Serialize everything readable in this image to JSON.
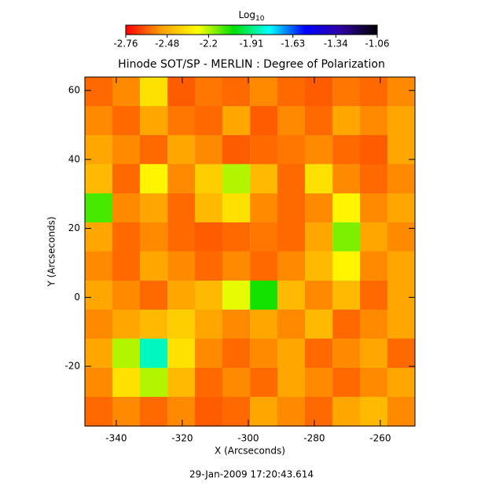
{
  "chart_data": {
    "type": "heatmap",
    "title": "Hinode SOT/SP - MERLIN : Degree of Polarization",
    "x_label": "X (Arcseconds)",
    "y_label": "Y (Arcseconds)",
    "colorbar_label": "Log",
    "colorbar_label_sub": "10",
    "footer": "29-Jan-2009 17:20:43.614",
    "xlim": [
      -349.5,
      -249.5
    ],
    "ylim": [
      -37.3,
      63.9
    ],
    "xticks": [
      -340,
      -320,
      -300,
      -280,
      -260
    ],
    "yticks": [
      -20,
      0,
      20,
      40,
      60
    ],
    "clim": [
      -2.76,
      -1.06
    ],
    "cticks": [
      -2.76,
      -2.48,
      -2.2,
      -1.91,
      -1.63,
      -1.34,
      -1.06
    ],
    "colormap": [
      "#ff0000",
      "#ffa000",
      "#ffff00",
      "#00e000",
      "#00ffff",
      "#0000ff",
      "#3000a0",
      "#000000"
    ],
    "x": [
      -345.3,
      -337.0,
      -328.7,
      -320.3,
      -312.0,
      -303.7,
      -295.3,
      -287.0,
      -278.7,
      -270.3,
      -262.0,
      -253.7
    ],
    "y": [
      59.7,
      51.2,
      42.8,
      34.4,
      25.9,
      17.5,
      9.1,
      0.6,
      -7.8,
      -16.2,
      -24.7,
      -33.1
    ],
    "z": [
      [
        -2.6,
        -2.55,
        -2.35,
        -2.62,
        -2.58,
        -2.6,
        -2.55,
        -2.6,
        -2.62,
        -2.58,
        -2.6,
        -2.55
      ],
      [
        -2.55,
        -2.6,
        -2.5,
        -2.58,
        -2.6,
        -2.5,
        -2.62,
        -2.55,
        -2.6,
        -2.5,
        -2.55,
        -2.5
      ],
      [
        -2.5,
        -2.55,
        -2.6,
        -2.5,
        -2.55,
        -2.62,
        -2.6,
        -2.58,
        -2.55,
        -2.6,
        -2.62,
        -2.5
      ],
      [
        -2.45,
        -2.6,
        -2.3,
        -2.55,
        -2.4,
        -2.2,
        -2.45,
        -2.6,
        -2.35,
        -2.55,
        -2.6,
        -2.55
      ],
      [
        -2.1,
        -2.55,
        -2.5,
        -2.6,
        -2.45,
        -2.35,
        -2.55,
        -2.6,
        -2.55,
        -2.3,
        -2.55,
        -2.5
      ],
      [
        -2.5,
        -2.6,
        -2.55,
        -2.6,
        -2.62,
        -2.6,
        -2.58,
        -2.6,
        -2.5,
        -2.15,
        -2.5,
        -2.55
      ],
      [
        -2.55,
        -2.6,
        -2.5,
        -2.55,
        -2.6,
        -2.55,
        -2.6,
        -2.55,
        -2.45,
        -2.3,
        -2.55,
        -2.5
      ],
      [
        -2.5,
        -2.55,
        -2.6,
        -2.5,
        -2.45,
        -2.25,
        -2.05,
        -2.45,
        -2.55,
        -2.45,
        -2.6,
        -2.5
      ],
      [
        -2.55,
        -2.5,
        -2.45,
        -2.4,
        -2.5,
        -2.55,
        -2.5,
        -2.55,
        -2.45,
        -2.6,
        -2.55,
        -2.5
      ],
      [
        -2.5,
        -2.2,
        -1.85,
        -2.35,
        -2.55,
        -2.6,
        -2.55,
        -2.5,
        -2.6,
        -2.55,
        -2.5,
        -2.6
      ],
      [
        -2.55,
        -2.35,
        -2.2,
        -2.45,
        -2.6,
        -2.55,
        -2.6,
        -2.5,
        -2.55,
        -2.6,
        -2.55,
        -2.5
      ],
      [
        -2.6,
        -2.55,
        -2.6,
        -2.55,
        -2.62,
        -2.6,
        -2.5,
        -2.55,
        -2.6,
        -2.5,
        -2.45,
        -2.55
      ]
    ]
  }
}
